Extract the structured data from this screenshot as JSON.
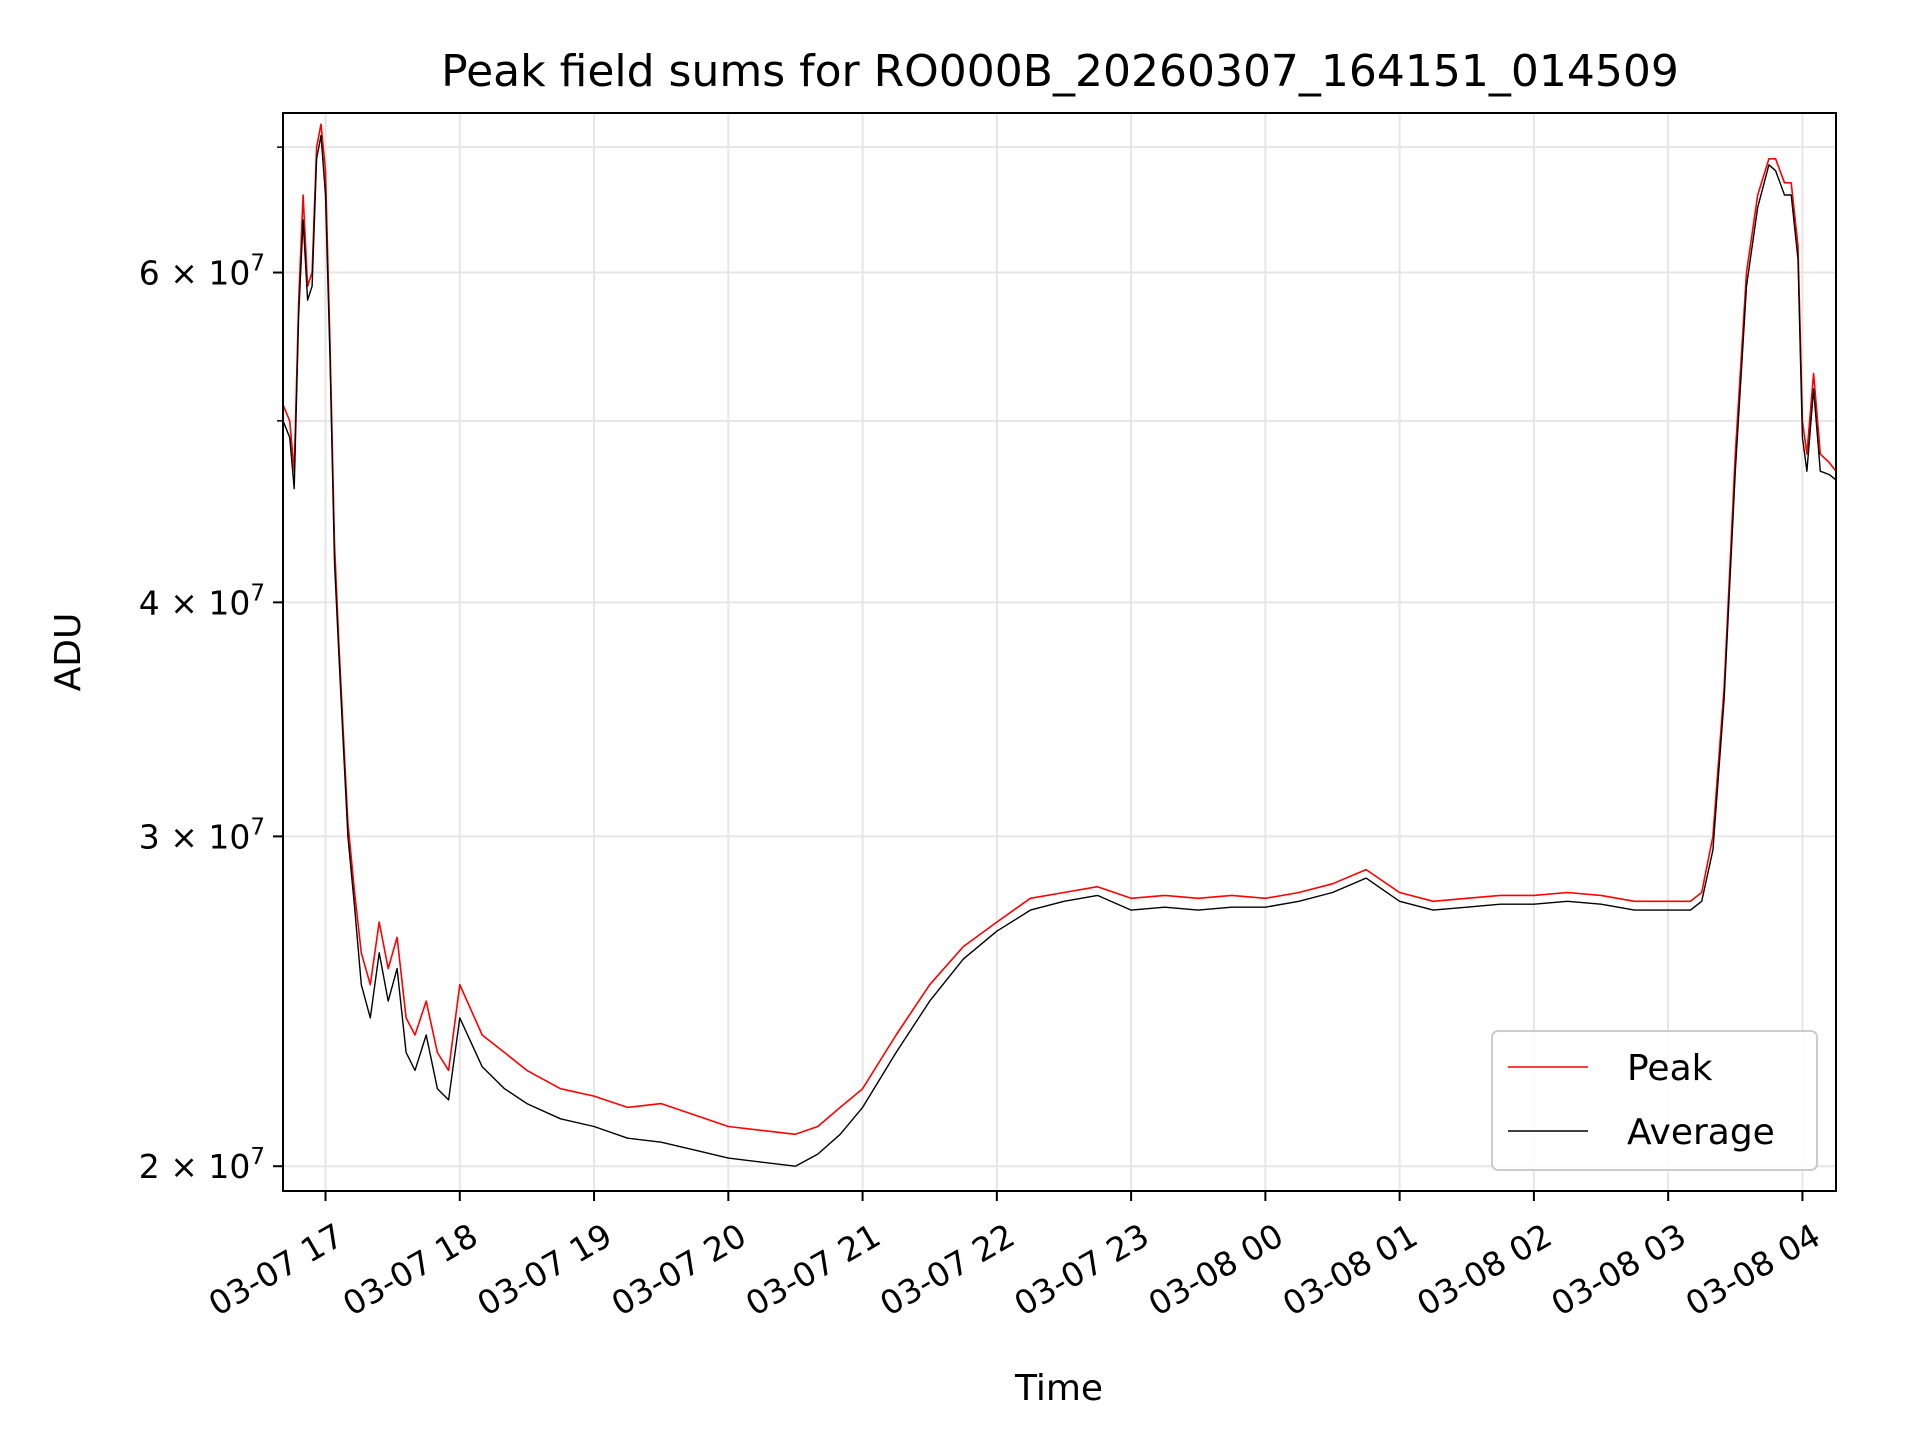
{
  "chart_data": {
    "type": "line",
    "title": "Peak field sums for RO000B_20260307_164151_014509",
    "xlabel": "Time",
    "ylabel": "ADU",
    "y_scale": "log",
    "ylim": [
      19400000,
      73000000
    ],
    "xlim": [
      "2026-03-07 16:41",
      "2026-03-08 04:15"
    ],
    "grid": true,
    "legend_position": "lower-right",
    "x_ticks": [
      {
        "value": "2026-03-07 17:00",
        "label": "03-07 17"
      },
      {
        "value": "2026-03-07 18:00",
        "label": "03-07 18"
      },
      {
        "value": "2026-03-07 19:00",
        "label": "03-07 19"
      },
      {
        "value": "2026-03-07 20:00",
        "label": "03-07 20"
      },
      {
        "value": "2026-03-07 21:00",
        "label": "03-07 21"
      },
      {
        "value": "2026-03-07 22:00",
        "label": "03-07 22"
      },
      {
        "value": "2026-03-07 23:00",
        "label": "03-07 23"
      },
      {
        "value": "2026-03-08 00:00",
        "label": "03-08 00"
      },
      {
        "value": "2026-03-08 01:00",
        "label": "03-08 01"
      },
      {
        "value": "2026-03-08 02:00",
        "label": "03-08 02"
      },
      {
        "value": "2026-03-08 03:00",
        "label": "03-08 03"
      },
      {
        "value": "2026-03-08 04:00",
        "label": "03-08 04"
      }
    ],
    "y_ticks": [
      {
        "value": 20000000,
        "mantissa": "2",
        "exponent": "7"
      },
      {
        "value": 30000000,
        "mantissa": "3",
        "exponent": "7"
      },
      {
        "value": 40000000,
        "mantissa": "4",
        "exponent": "7"
      },
      {
        "value": 60000000,
        "mantissa": "6",
        "exponent": "7"
      }
    ],
    "y_minor_ticks": [
      50000000,
      70000000
    ],
    "series": [
      {
        "name": "Peak",
        "color": "#ff0000",
        "x": [
          "2026-03-07 16:41",
          "2026-03-07 16:44",
          "2026-03-07 16:46",
          "2026-03-07 16:48",
          "2026-03-07 16:50",
          "2026-03-07 16:52",
          "2026-03-07 16:54",
          "2026-03-07 16:56",
          "2026-03-07 16:58",
          "2026-03-07 17:00",
          "2026-03-07 17:02",
          "2026-03-07 17:04",
          "2026-03-07 17:06",
          "2026-03-07 17:08",
          "2026-03-07 17:10",
          "2026-03-07 17:13",
          "2026-03-07 17:16",
          "2026-03-07 17:20",
          "2026-03-07 17:24",
          "2026-03-07 17:28",
          "2026-03-07 17:32",
          "2026-03-07 17:36",
          "2026-03-07 17:40",
          "2026-03-07 17:45",
          "2026-03-07 17:50",
          "2026-03-07 17:55",
          "2026-03-07 18:00",
          "2026-03-07 18:10",
          "2026-03-07 18:20",
          "2026-03-07 18:30",
          "2026-03-07 18:45",
          "2026-03-07 19:00",
          "2026-03-07 19:15",
          "2026-03-07 19:30",
          "2026-03-07 19:45",
          "2026-03-07 20:00",
          "2026-03-07 20:15",
          "2026-03-07 20:30",
          "2026-03-07 20:40",
          "2026-03-07 20:50",
          "2026-03-07 21:00",
          "2026-03-07 21:15",
          "2026-03-07 21:30",
          "2026-03-07 21:45",
          "2026-03-07 22:00",
          "2026-03-07 22:15",
          "2026-03-07 22:30",
          "2026-03-07 22:45",
          "2026-03-07 23:00",
          "2026-03-07 23:15",
          "2026-03-07 23:30",
          "2026-03-07 23:45",
          "2026-03-08 00:00",
          "2026-03-08 00:15",
          "2026-03-08 00:30",
          "2026-03-08 00:45",
          "2026-03-08 01:00",
          "2026-03-08 01:15",
          "2026-03-08 01:30",
          "2026-03-08 01:45",
          "2026-03-08 02:00",
          "2026-03-08 02:15",
          "2026-03-08 02:30",
          "2026-03-08 02:45",
          "2026-03-08 03:00",
          "2026-03-08 03:10",
          "2026-03-08 03:15",
          "2026-03-08 03:20",
          "2026-03-08 03:25",
          "2026-03-08 03:30",
          "2026-03-08 03:35",
          "2026-03-08 03:40",
          "2026-03-08 03:45",
          "2026-03-08 03:48",
          "2026-03-08 03:52",
          "2026-03-08 03:55",
          "2026-03-08 03:58",
          "2026-03-08 04:00",
          "2026-03-08 04:02",
          "2026-03-08 04:05",
          "2026-03-08 04:08",
          "2026-03-08 04:12",
          "2026-03-08 04:15"
        ],
        "values": [
          51000000,
          50000000,
          47000000,
          58000000,
          66000000,
          59000000,
          60000000,
          70000000,
          72000000,
          68000000,
          55000000,
          43000000,
          38000000,
          34000000,
          30500000,
          28000000,
          26000000,
          25000000,
          27000000,
          25500000,
          26500000,
          24000000,
          23500000,
          24500000,
          23000000,
          22500000,
          25000000,
          23500000,
          23000000,
          22500000,
          22000000,
          21800000,
          21500000,
          21600000,
          21300000,
          21000000,
          20900000,
          20800000,
          21000000,
          21500000,
          22000000,
          23500000,
          25000000,
          26200000,
          27000000,
          27800000,
          28000000,
          28200000,
          27800000,
          27900000,
          27800000,
          27900000,
          27800000,
          28000000,
          28300000,
          28800000,
          28000000,
          27700000,
          27800000,
          27900000,
          27900000,
          28000000,
          27900000,
          27700000,
          27700000,
          27700000,
          28000000,
          30000000,
          36000000,
          48000000,
          60000000,
          66000000,
          69000000,
          69000000,
          67000000,
          67000000,
          62000000,
          50000000,
          48000000,
          53000000,
          48000000,
          47500000,
          47000000
        ]
      },
      {
        "name": "Average",
        "color": "#000000",
        "x": [
          "2026-03-07 16:41",
          "2026-03-07 16:44",
          "2026-03-07 16:46",
          "2026-03-07 16:48",
          "2026-03-07 16:50",
          "2026-03-07 16:52",
          "2026-03-07 16:54",
          "2026-03-07 16:56",
          "2026-03-07 16:58",
          "2026-03-07 17:00",
          "2026-03-07 17:02",
          "2026-03-07 17:04",
          "2026-03-07 17:06",
          "2026-03-07 17:08",
          "2026-03-07 17:10",
          "2026-03-07 17:13",
          "2026-03-07 17:16",
          "2026-03-07 17:20",
          "2026-03-07 17:24",
          "2026-03-07 17:28",
          "2026-03-07 17:32",
          "2026-03-07 17:36",
          "2026-03-07 17:40",
          "2026-03-07 17:45",
          "2026-03-07 17:50",
          "2026-03-07 17:55",
          "2026-03-07 18:00",
          "2026-03-07 18:10",
          "2026-03-07 18:20",
          "2026-03-07 18:30",
          "2026-03-07 18:45",
          "2026-03-07 19:00",
          "2026-03-07 19:15",
          "2026-03-07 19:30",
          "2026-03-07 19:45",
          "2026-03-07 20:00",
          "2026-03-07 20:15",
          "2026-03-07 20:30",
          "2026-03-07 20:40",
          "2026-03-07 20:50",
          "2026-03-07 21:00",
          "2026-03-07 21:15",
          "2026-03-07 21:30",
          "2026-03-07 21:45",
          "2026-03-07 22:00",
          "2026-03-07 22:15",
          "2026-03-07 22:30",
          "2026-03-07 22:45",
          "2026-03-07 23:00",
          "2026-03-07 23:15",
          "2026-03-07 23:30",
          "2026-03-07 23:45",
          "2026-03-08 00:00",
          "2026-03-08 00:15",
          "2026-03-08 00:30",
          "2026-03-08 00:45",
          "2026-03-08 01:00",
          "2026-03-08 01:15",
          "2026-03-08 01:30",
          "2026-03-08 01:45",
          "2026-03-08 02:00",
          "2026-03-08 02:15",
          "2026-03-08 02:30",
          "2026-03-08 02:45",
          "2026-03-08 03:00",
          "2026-03-08 03:10",
          "2026-03-08 03:15",
          "2026-03-08 03:20",
          "2026-03-08 03:25",
          "2026-03-08 03:30",
          "2026-03-08 03:35",
          "2026-03-08 03:40",
          "2026-03-08 03:45",
          "2026-03-08 03:48",
          "2026-03-08 03:52",
          "2026-03-08 03:55",
          "2026-03-08 03:58",
          "2026-03-08 04:00",
          "2026-03-08 04:02",
          "2026-03-08 04:05",
          "2026-03-08 04:08",
          "2026-03-08 04:12",
          "2026-03-08 04:15"
        ],
        "values": [
          50000000,
          49000000,
          46000000,
          57000000,
          64000000,
          58000000,
          59000000,
          69000000,
          71000000,
          66000000,
          54000000,
          42000000,
          37500000,
          33500000,
          30000000,
          27500000,
          25000000,
          24000000,
          26000000,
          24500000,
          25500000,
          23000000,
          22500000,
          23500000,
          22000000,
          21700000,
          24000000,
          22600000,
          22000000,
          21600000,
          21200000,
          21000000,
          20700000,
          20600000,
          20400000,
          20200000,
          20100000,
          20000000,
          20300000,
          20800000,
          21500000,
          23000000,
          24500000,
          25800000,
          26700000,
          27400000,
          27700000,
          27900000,
          27400000,
          27500000,
          27400000,
          27500000,
          27500000,
          27700000,
          28000000,
          28500000,
          27700000,
          27400000,
          27500000,
          27600000,
          27600000,
          27700000,
          27600000,
          27400000,
          27400000,
          27400000,
          27700000,
          29500000,
          35500000,
          47000000,
          59000000,
          65000000,
          68500000,
          68000000,
          66000000,
          66000000,
          61000000,
          49000000,
          47000000,
          52000000,
          47000000,
          46800000,
          46500000
        ]
      }
    ]
  }
}
